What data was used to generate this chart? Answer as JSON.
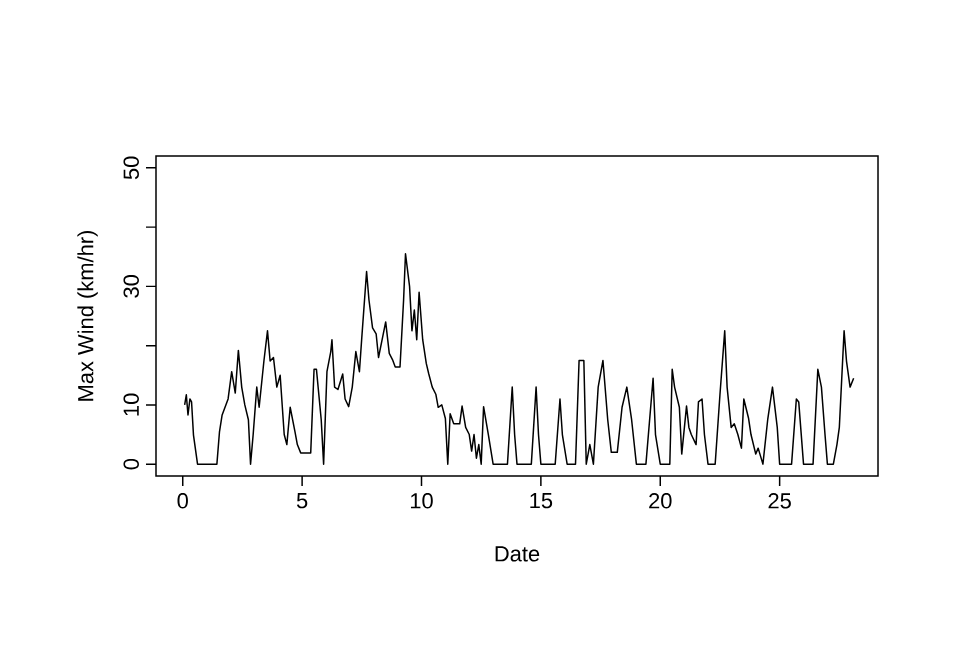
{
  "chart_data": {
    "type": "line",
    "xlabel": "Date",
    "ylabel": "Max Wind (km/hr)",
    "xlim": [
      -1.12,
      29.12
    ],
    "ylim": [
      -2,
      52
    ],
    "xticks": [
      0,
      5,
      10,
      15,
      20,
      25
    ],
    "yticks": [
      0,
      10,
      {
        "value": 20,
        "label": null
      },
      30,
      {
        "value": 40,
        "label": null
      },
      50
    ],
    "grid": false,
    "marker": "none",
    "line_style": "solid",
    "series": [
      {
        "color": "#000000",
        "x": [
          0.08,
          0.15,
          0.22,
          0.3,
          0.37,
          0.45,
          0.62,
          0.8,
          1.43,
          1.54,
          1.65,
          1.9,
          2.05,
          2.2,
          2.33,
          2.47,
          2.6,
          2.75,
          2.84,
          2.95,
          3.1,
          3.2,
          3.4,
          3.55,
          3.66,
          3.8,
          3.94,
          4.08,
          4.25,
          4.36,
          4.5,
          4.7,
          4.8,
          4.94,
          5.36,
          5.5,
          5.6,
          5.8,
          5.9,
          6.04,
          6.2,
          6.25,
          6.36,
          6.5,
          6.7,
          6.8,
          6.95,
          7.1,
          7.25,
          7.4,
          7.5,
          7.7,
          7.8,
          7.95,
          8.1,
          8.2,
          8.37,
          8.5,
          8.65,
          8.8,
          8.9,
          9.1,
          9.25,
          9.33,
          9.5,
          9.6,
          9.7,
          9.8,
          9.9,
          10.05,
          10.2,
          10.3,
          10.45,
          10.6,
          10.7,
          10.85,
          11.0,
          11.1,
          11.2,
          11.35,
          11.6,
          11.7,
          11.85,
          12.0,
          12.1,
          12.2,
          12.3,
          12.4,
          12.5,
          12.6,
          12.8,
          13.0,
          13.6,
          13.8,
          13.9,
          14.0,
          14.6,
          14.8,
          14.9,
          15.0,
          15.6,
          15.8,
          15.9,
          16.1,
          16.45,
          16.6,
          16.8,
          16.9,
          17.05,
          17.2,
          17.4,
          17.6,
          17.8,
          17.95,
          18.2,
          18.4,
          18.6,
          18.8,
          19.0,
          19.4,
          19.7,
          19.8,
          20.0,
          20.4,
          20.5,
          20.6,
          20.8,
          20.9,
          21.1,
          21.2,
          21.3,
          21.5,
          21.6,
          21.75,
          21.85,
          22.0,
          22.3,
          22.5,
          22.7,
          22.8,
          22.97,
          23.1,
          23.25,
          23.4,
          23.5,
          23.7,
          23.8,
          24.0,
          24.1,
          24.3,
          24.5,
          24.7,
          24.9,
          25.0,
          25.5,
          25.7,
          25.8,
          26.0,
          26.4,
          26.6,
          26.75,
          26.9,
          27.0,
          27.25,
          27.4,
          27.5,
          27.7,
          27.8,
          27.95,
          28.1
        ],
        "values": [
          10,
          11.7,
          8.3,
          11,
          10.5,
          4.9,
          0,
          0,
          0,
          5.5,
          8.3,
          11,
          15.6,
          12,
          19.2,
          13,
          10,
          7.5,
          0,
          5,
          13,
          9.6,
          17.4,
          22.5,
          17.4,
          18,
          13,
          15,
          5,
          3.3,
          9.6,
          5.5,
          3.3,
          1.9,
          1.9,
          16,
          16,
          7.5,
          0,
          15.6,
          19,
          21,
          13,
          12.6,
          15.2,
          11,
          9.7,
          13,
          19,
          15.6,
          21.4,
          32.5,
          27.7,
          23,
          22,
          18,
          21.4,
          24,
          18.7,
          17.5,
          16.4,
          16.4,
          27.7,
          35.5,
          30,
          22.5,
          26,
          21,
          29,
          21,
          17,
          15.3,
          13,
          11.8,
          9.6,
          10,
          7.7,
          0,
          8.5,
          6.8,
          6.8,
          9.8,
          6.2,
          5,
          2.2,
          5,
          1,
          3.3,
          0,
          9.7,
          5,
          0,
          0,
          13,
          5,
          0,
          0,
          13,
          5,
          0,
          0,
          11,
          5,
          0,
          0,
          17.5,
          17.5,
          0,
          3.3,
          0,
          13,
          17.5,
          7.5,
          2,
          2,
          9.6,
          13,
          7.5,
          0,
          0,
          14.5,
          5,
          0,
          0,
          16,
          13,
          9.6,
          1.7,
          9.8,
          6.2,
          5,
          3.3,
          10.5,
          11,
          5,
          0,
          0,
          11.7,
          22.5,
          13,
          6.2,
          6.8,
          5,
          2.7,
          11,
          7.7,
          5,
          1.7,
          2.7,
          0,
          7.5,
          13,
          6.2,
          0,
          0,
          11,
          10.5,
          0,
          0,
          16,
          13,
          5,
          0,
          0,
          3.3,
          6.2,
          22.5,
          17.4,
          13,
          14.5
        ]
      }
    ]
  }
}
